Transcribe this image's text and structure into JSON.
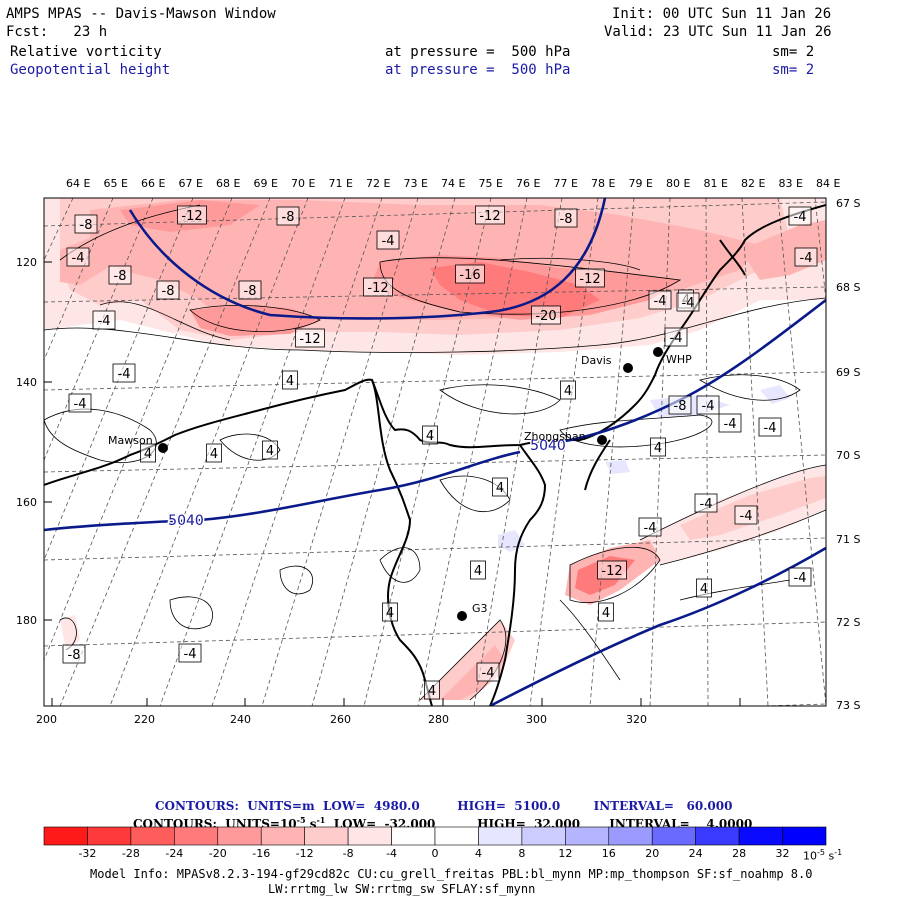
{
  "header": {
    "title": "AMPS MPAS -- Davis-Mawson Window",
    "init": "Init: 00 UTC Sun 11 Jan 26",
    "fcst": "Fcst:   23 h",
    "valid": "Valid: 23 UTC Sun 11 Jan 26",
    "field1": {
      "name": "Relative vorticity",
      "level": "at pressure =  500 hPa",
      "sm": "sm= 2"
    },
    "field2": {
      "name": "Geopotential height",
      "level": "at pressure =  500 hPa",
      "sm": "sm= 2"
    }
  },
  "axes": {
    "top_labels": [
      "64 E",
      "65 E",
      "66 E",
      "67 E",
      "68 E",
      "69 E",
      "70 E",
      "71 E",
      "72 E",
      "73 E",
      "74 E",
      "75 E",
      "76 E",
      "77 E",
      "78 E",
      "79 E",
      "80 E",
      "81 E",
      "82 E",
      "83 E",
      "84 E"
    ],
    "right_labels": [
      "67 S",
      "68 S",
      "69 S",
      "70 S",
      "71 S",
      "72 S",
      "73 S"
    ],
    "left_labels": [
      "120",
      "140",
      "160",
      "180"
    ],
    "bottom_labels": [
      "200",
      "220",
      "240",
      "260",
      "280",
      "300",
      "320"
    ]
  },
  "stations": [
    {
      "name": "Mawson"
    },
    {
      "name": "Davis"
    },
    {
      "name": "WHP"
    },
    {
      "name": "Zhongshan"
    },
    {
      "name": "G3"
    }
  ],
  "height_labels": [
    "5040",
    "5040"
  ],
  "vorticity_labels": [
    "-12",
    "-8",
    "-4",
    "-8",
    "-4",
    "-12",
    "-8",
    "-4",
    "-16",
    "-12",
    "-12",
    "-20",
    "-12",
    "-8",
    "-8",
    "-8",
    "-4",
    "-4",
    "-4",
    "-4",
    "-4",
    "4",
    "4",
    "4",
    "4",
    "4",
    "-4",
    "-4",
    "-4",
    "-4",
    "4",
    "4",
    "4",
    "4",
    "-4",
    "-4",
    "-12",
    "-4",
    "-4",
    "4",
    "4",
    "4",
    "-4",
    "4",
    "-8",
    "-4",
    "4",
    "-8",
    "-4"
  ],
  "contours_info": {
    "line1": "CONTOURS:  UNITS=m  LOW=  4980.0         HIGH=  5100.0        INTERVAL=   60.000",
    "line2": "CONTOURS:  UNITS=10",
    "line2_exp": "-5",
    "line2_rest": " s",
    "line2_exp2": "-1",
    "line2_tail": "  LOW=  -32.000          HIGH=  32.000       INTERVAL=    4.0000"
  },
  "colorbar": {
    "labels": [
      "-32",
      "-28",
      "-24",
      "-20",
      "-16",
      "-12",
      "-8",
      "-4",
      "0",
      "4",
      "8",
      "12",
      "16",
      "20",
      "24",
      "28",
      "32"
    ],
    "unit": "10",
    "unit_exp": "-5",
    "unit_s": " s",
    "unit_exp2": "-1",
    "colors": [
      "#ff1a1a",
      "#ff3a3a",
      "#ff5c5c",
      "#ff7a7a",
      "#ff9a9a",
      "#ffb4b4",
      "#ffcccc",
      "#ffe6e6",
      "#ffffff",
      "#ffffff",
      "#e6e6ff",
      "#ccccff",
      "#b4b4ff",
      "#9a9aff",
      "#6a6aff",
      "#3a3aff",
      "#0a0aff"
    ]
  },
  "footer": {
    "line1": "Model Info: MPASv8.2.3-194-gf29cd82c CU:cu_grell_freitas PBL:bl_mynn MP:mp_thompson SF:sf_noahmp 8.0",
    "line2": "LW:rrtmg_lw SW:rrtmg_sw SFLAY:sf_mynn"
  }
}
